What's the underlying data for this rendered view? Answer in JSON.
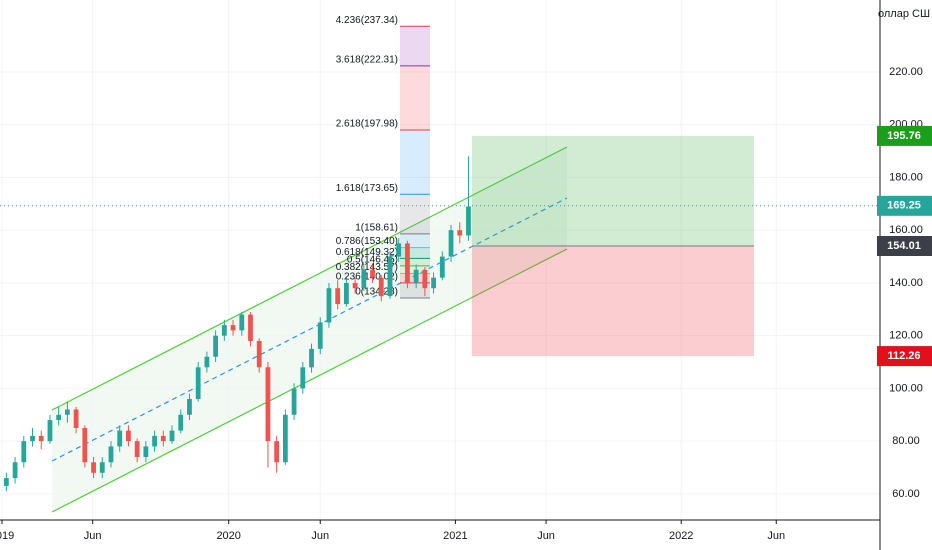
{
  "chart_data": {
    "type": "candlestick",
    "axis_currency": "оллар СШ",
    "up_color": "#26a69a",
    "down_color": "#ef5350",
    "xlim": [
      0,
      100.7
    ],
    "xticks": [
      {
        "value": 0,
        "label": "2019"
      },
      {
        "value": 10.4,
        "label": "Jun"
      },
      {
        "value": 26,
        "label": "2020"
      },
      {
        "value": 36.5,
        "label": "Jun"
      },
      {
        "value": 52,
        "label": "2021"
      },
      {
        "value": 62.4,
        "label": "Jun"
      },
      {
        "value": 77.9,
        "label": "2022"
      },
      {
        "value": 88.8,
        "label": "Jun"
      }
    ],
    "ylim": [
      50.1,
      247.3
    ],
    "yticks": [
      {
        "value": 60,
        "label": "60.00"
      },
      {
        "value": 80,
        "label": "80.00"
      },
      {
        "value": 100,
        "label": "100.00"
      },
      {
        "value": 120,
        "label": "120.00"
      },
      {
        "value": 140,
        "label": "140.00"
      },
      {
        "value": 160,
        "label": "160.00"
      },
      {
        "value": 180,
        "label": "180.00"
      },
      {
        "value": 200,
        "label": "200.00"
      },
      {
        "value": 220,
        "label": "220.00"
      }
    ],
    "grid": true,
    "candles": [
      [
        63,
        68,
        61,
        66
      ],
      [
        66,
        74,
        64,
        72
      ],
      [
        72,
        82,
        70,
        80
      ],
      [
        80,
        85,
        78,
        82
      ],
      [
        82,
        84,
        77,
        80
      ],
      [
        80,
        90,
        79,
        88
      ],
      [
        88,
        93,
        86,
        90
      ],
      [
        90,
        95,
        87,
        92
      ],
      [
        92,
        93,
        83,
        85
      ],
      [
        85,
        86,
        70,
        72
      ],
      [
        72,
        74,
        66,
        68
      ],
      [
        68,
        74,
        66,
        72
      ],
      [
        72,
        80,
        70,
        78
      ],
      [
        78,
        86,
        76,
        84
      ],
      [
        84,
        86,
        78,
        80
      ],
      [
        80,
        81,
        72,
        74
      ],
      [
        74,
        80,
        72,
        78
      ],
      [
        78,
        84,
        76,
        82
      ],
      [
        82,
        84,
        78,
        80
      ],
      [
        80,
        86,
        79,
        84
      ],
      [
        84,
        92,
        83,
        90
      ],
      [
        90,
        98,
        88,
        96
      ],
      [
        96,
        110,
        95,
        108
      ],
      [
        108,
        114,
        106,
        112
      ],
      [
        112,
        122,
        110,
        120
      ],
      [
        120,
        126,
        118,
        124
      ],
      [
        124,
        126,
        120,
        122
      ],
      [
        122,
        129,
        120,
        128
      ],
      [
        128,
        129,
        116,
        118
      ],
      [
        118,
        119,
        106,
        108
      ],
      [
        108,
        110,
        70,
        80
      ],
      [
        80,
        82,
        68,
        72
      ],
      [
        72,
        92,
        71,
        90
      ],
      [
        90,
        102,
        88,
        100
      ],
      [
        100,
        110,
        98,
        108
      ],
      [
        108,
        117,
        106,
        115
      ],
      [
        115,
        127,
        113,
        125
      ],
      [
        125,
        140,
        123,
        138
      ],
      [
        138,
        141,
        130,
        132
      ],
      [
        132,
        142,
        131,
        140
      ],
      [
        140,
        142,
        136,
        138
      ],
      [
        138,
        147,
        137,
        145
      ],
      [
        145,
        147,
        140,
        142
      ],
      [
        142,
        143,
        133,
        135
      ],
      [
        135,
        152,
        134,
        150
      ],
      [
        150,
        157,
        148,
        155
      ],
      [
        155,
        156,
        138,
        140
      ],
      [
        140,
        147,
        138,
        145
      ],
      [
        145,
        146,
        135,
        138
      ],
      [
        138,
        144,
        136,
        142
      ],
      [
        142,
        152,
        141,
        150
      ],
      [
        150,
        162,
        148,
        160
      ],
      [
        160,
        163,
        155,
        158
      ],
      [
        158,
        188,
        156,
        169
      ]
    ],
    "last_price": 169.25,
    "position": {
      "target": 195.76,
      "entry": 154.01,
      "stop": 112.26
    },
    "fib_levels": [
      {
        "label": "4.236(237.34)",
        "value": 237.34,
        "color": "#f23645"
      },
      {
        "label": "3.618(222.31)",
        "value": 222.31,
        "color": "#9c27b0"
      },
      {
        "label": "2.618(197.98)",
        "value": 197.98,
        "color": "#f23645"
      },
      {
        "label": "1.618(173.65)",
        "value": 173.65,
        "color": "#2196f3"
      },
      {
        "label": "1(158.61)",
        "value": 158.61,
        "color": "#787b86"
      },
      {
        "label": "0.786(153.40)",
        "value": 153.4,
        "color": "#64b5f6"
      },
      {
        "label": "0.618(149.32)",
        "value": 149.32,
        "color": "#089981"
      },
      {
        "label": "0.5(146.45)",
        "value": 146.45,
        "color": "#4caf50"
      },
      {
        "label": "0.382(143.57)",
        "value": 143.57,
        "color": "#81c784"
      },
      {
        "label": "0.236(140.02)",
        "value": 140.02,
        "color": "#f23645"
      },
      {
        "label": "0(134.28)",
        "value": 134.28,
        "color": "#787b86"
      }
    ]
  }
}
